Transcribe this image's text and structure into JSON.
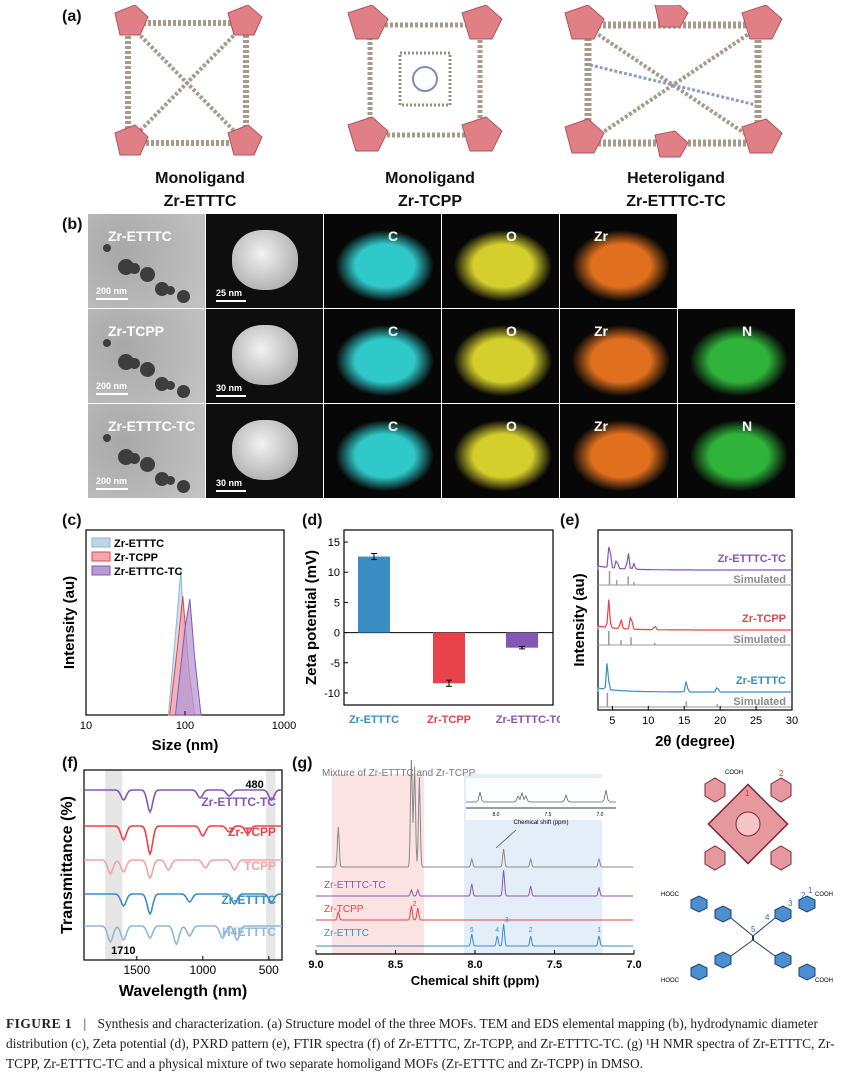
{
  "panels": {
    "a": "(a)",
    "b": "(b)",
    "c": "(c)",
    "d": "(d)",
    "e": "(e)",
    "f": "(f)",
    "g": "(g)"
  },
  "structures": [
    {
      "line1": "Monoligand",
      "line2": "Zr-ETTTC"
    },
    {
      "line1": "Monoligand",
      "line2": "Zr-TCPP"
    },
    {
      "line1": "Heteroligand",
      "line2": "Zr-ETTTC-TC"
    }
  ],
  "tem_rows": [
    {
      "sample": "Zr-ETTTC",
      "scale_tem": "200 nm",
      "scale_haadf": "25 nm",
      "maps": [
        "C",
        "O",
        "Zr"
      ]
    },
    {
      "sample": "Zr-TCPP",
      "scale_tem": "200 nm",
      "scale_haadf": "30 nm",
      "maps": [
        "C",
        "O",
        "Zr",
        "N"
      ]
    },
    {
      "sample": "Zr-ETTTC-TC",
      "scale_tem": "200 nm",
      "scale_haadf": "30 nm",
      "maps": [
        "C",
        "O",
        "Zr",
        "N"
      ]
    }
  ],
  "colors": {
    "blue": "#3a8ec4",
    "red": "#e8434a",
    "purple": "#8557b5",
    "gray": "#9a9a9a",
    "pink": "#f3a3a3",
    "lightblue": "#8fb7d6"
  },
  "chart_data": [
    {
      "id": "c",
      "type": "area",
      "xlabel": "Size (nm)",
      "ylabel": "Intensity (au)",
      "xscale": "log",
      "xlim": [
        10,
        1000
      ],
      "xticks": [
        "10",
        "100",
        "1000"
      ],
      "legend": [
        "Zr-ETTTC",
        "Zr-TCPP",
        "Zr-ETTTC-TC"
      ],
      "series": [
        {
          "name": "Zr-ETTTC",
          "x": [
            68,
            80,
            91,
            100,
            115
          ],
          "y": [
            0,
            0.55,
            1.0,
            0.4,
            0
          ]
        },
        {
          "name": "Zr-TCPP",
          "x": [
            70,
            85,
            95,
            110,
            125
          ],
          "y": [
            0,
            0.5,
            0.82,
            0.3,
            0
          ]
        },
        {
          "name": "Zr-ETTTC-TC",
          "x": [
            80,
            100,
            112,
            125,
            145
          ],
          "y": [
            0,
            0.6,
            0.8,
            0.4,
            0
          ]
        }
      ]
    },
    {
      "id": "d",
      "type": "bar",
      "ylabel": "Zeta potential (mV)",
      "ylim": [
        -12,
        17
      ],
      "yticks": [
        "-10",
        "-5",
        "0",
        "5",
        "10",
        "15"
      ],
      "categories": [
        "Zr-ETTTC",
        "Zr-TCPP",
        "Zr-ETTTC-TC"
      ],
      "values": [
        12.6,
        -8.4,
        -2.5
      ],
      "errors": [
        0.5,
        0.5,
        0.2
      ]
    },
    {
      "id": "e",
      "type": "line",
      "xlabel": "2θ (degree)",
      "ylabel": "Intensity (au)",
      "xlim": [
        3,
        30
      ],
      "xticks": [
        "5",
        "10",
        "15",
        "20",
        "25",
        "30"
      ],
      "traces": [
        {
          "name": "Zr-ETTTC-TC",
          "peaks": [
            [
              4.6,
              1.0
            ],
            [
              5.6,
              0.35
            ],
            [
              7.2,
              0.6
            ],
            [
              8.0,
              0.2
            ]
          ],
          "simulated": "Simulated"
        },
        {
          "name": "Zr-TCPP",
          "peaks": [
            [
              4.5,
              1.0
            ],
            [
              6.2,
              0.35
            ],
            [
              7.6,
              0.55
            ],
            [
              10.9,
              0.15
            ]
          ],
          "simulated": "Simulated"
        },
        {
          "name": "Zr-ETTTC",
          "peaks": [
            [
              4.3,
              1.0
            ],
            [
              15.3,
              0.4
            ],
            [
              19.6,
              0.2
            ]
          ],
          "simulated": "Simulated"
        }
      ]
    },
    {
      "id": "f",
      "type": "line",
      "xlabel": "Wavelength (nm)",
      "ylabel": "Transmittance (%)",
      "xlim": [
        1900,
        400
      ],
      "xticks": [
        "1500",
        "1000",
        "500"
      ],
      "annotations": [
        "480",
        "1710"
      ],
      "traces": [
        "Zr-ETTTC-TC",
        "Zr-TCPP",
        "TCPP",
        "Zr-ETTTC",
        "H4ETTTC"
      ]
    },
    {
      "id": "g",
      "type": "line",
      "title": "Mixture of Zr-ETTTC and Zr-TCPP",
      "xlabel": "Chemical shift (ppm)",
      "xlim": [
        9.0,
        7.0
      ],
      "xticks": [
        "9.0",
        "8.5",
        "8.0",
        "7.5",
        "7.0"
      ],
      "inset_xlabel": "Chemical shift (ppm)",
      "inset_ticks": [
        "8.0",
        "7.5",
        "7.0"
      ],
      "traces": [
        "Mixture",
        "Zr-ETTTC-TC",
        "Zr-TCPP",
        "Zr-ETTTC"
      ],
      "peak_labels": [
        "5",
        "4",
        "3",
        "2",
        "1"
      ],
      "tcpp_label": "2"
    }
  ],
  "caption": {
    "label": "FIGURE 1",
    "separator": "|",
    "text": "Synthesis and characterization. (a) Structure model of the three MOFs. TEM and EDS elemental mapping (b), hydrodynamic diameter distribution (c), Zeta potential (d), PXRD pattern (e), FTIR spectra (f) of Zr-ETTTC, Zr-TCPP, and Zr-ETTTC-TC. (g) ¹H NMR spectra of Zr-ETTTC, Zr-TCPP, Zr-ETTTC-TC and a physical mixture of two separate homoligand MOFs (Zr-ETTTC and Zr-TCPP) in DMSO."
  },
  "molecules": {
    "cooh": "COOH",
    "hoocL": "HOOC",
    "tcpp_marks": [
      "1",
      "2"
    ],
    "ettc_marks": [
      "1",
      "2",
      "3",
      "4",
      "5"
    ]
  }
}
